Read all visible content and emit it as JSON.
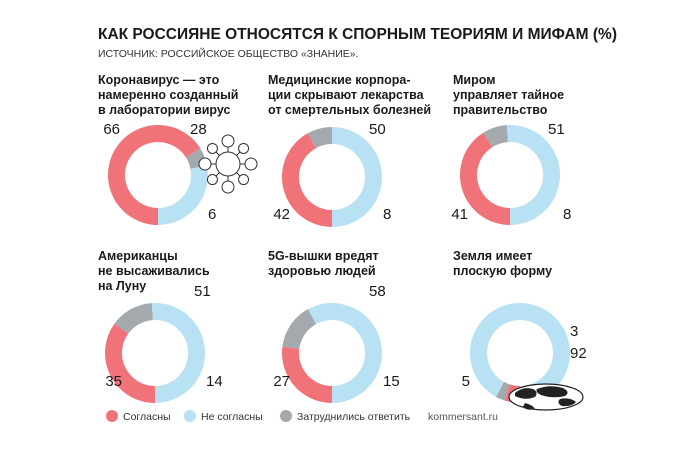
{
  "title": "КАК РОССИЯНЕ ОТНОСЯТСЯ К СПОРНЫМ ТЕОРИЯМ И МИФАМ (%)",
  "subtitle": "ИСТОЧНИК: РОССИЙСКОЕ ОБЩЕСТВО «ЗНАНИЕ».",
  "source": "kommersant.ru",
  "colors": {
    "agree": "#f0737a",
    "disagree": "#b9e1f4",
    "undecided": "#a3a9ad",
    "text": "#1a1a1a"
  },
  "legend": [
    {
      "label": "Согласны",
      "color": "#f0737a"
    },
    {
      "label": "Не согласны",
      "color": "#b9e1f4"
    },
    {
      "label": "Затруднились ответить",
      "color": "#a3a9ad"
    }
  ],
  "chart_data": [
    {
      "type": "pie",
      "donut": true,
      "title_lines": [
        "Коронавирус — это",
        "намеренно созданный",
        "в лаборатории вирус"
      ],
      "categories": [
        "Согласны",
        "Не согласны",
        "Затруднились ответить"
      ],
      "values": [
        66,
        28,
        6
      ],
      "decoration": "virus-icon"
    },
    {
      "type": "pie",
      "donut": true,
      "title_lines": [
        "Медицинские корпора-",
        "ции скрывают лекарства",
        "от смертельных болезней"
      ],
      "categories": [
        "Согласны",
        "Не согласны",
        "Затруднились ответить"
      ],
      "values": [
        42,
        50,
        8
      ]
    },
    {
      "type": "pie",
      "donut": true,
      "title_lines": [
        "Миром",
        "управляет тайное",
        "правительство"
      ],
      "categories": [
        "Согласны",
        "Не согласны",
        "Затруднились ответить"
      ],
      "values": [
        41,
        51,
        8
      ]
    },
    {
      "type": "pie",
      "donut": true,
      "title_lines": [
        "Американцы",
        "не высаживались",
        "на Луну"
      ],
      "categories": [
        "Согласны",
        "Не согласны",
        "Затруднились ответить"
      ],
      "values": [
        35,
        51,
        14
      ]
    },
    {
      "type": "pie",
      "donut": true,
      "title_lines": [
        "5G-вышки вредят",
        "здоровью людей"
      ],
      "categories": [
        "Согласны",
        "Не согласны",
        "Затруднились ответить"
      ],
      "values": [
        27,
        58,
        15
      ]
    },
    {
      "type": "pie",
      "donut": true,
      "title_lines": [
        "Земля имеет",
        "плоскую форму"
      ],
      "categories": [
        "Согласны",
        "Не согласны",
        "Затруднились ответить"
      ],
      "values": [
        5,
        92,
        3
      ],
      "decoration": "globe-icon"
    }
  ]
}
